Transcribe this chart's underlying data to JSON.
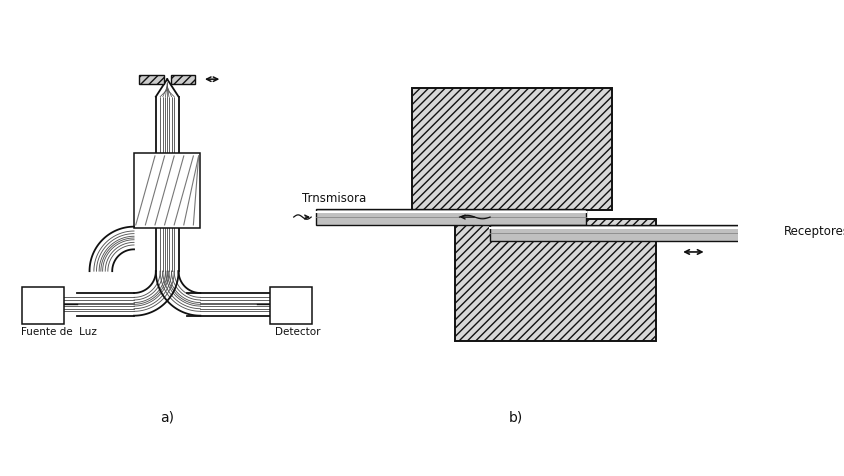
{
  "bg_color": "#ffffff",
  "fig_width": 8.44,
  "fig_height": 4.76,
  "label_a": "a)",
  "label_b": "b)",
  "label_fuente": "Fuente de  Luz",
  "label_detector": "Detector",
  "label_transmisora": "Trnsmisora",
  "label_receptores": "Receptores",
  "lc": "#111111",
  "gray_hatch": "#bbbbbb",
  "gray_tube": "#aaaaaa",
  "gray_mid": "#888888"
}
